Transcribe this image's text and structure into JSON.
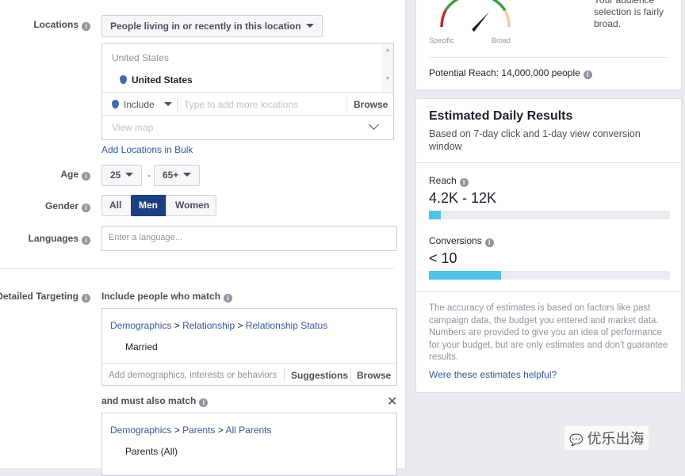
{
  "locations": {
    "label": "Locations",
    "type_dropdown": "People living in or recently in this location",
    "group_header": "United States",
    "selected": "United States",
    "include_label": "Include",
    "input_placeholder": "Type to add more locations",
    "browse": "Browse",
    "view_map": "View map",
    "bulk_link": "Add Locations in Bulk"
  },
  "age": {
    "label": "Age",
    "min": "25",
    "max": "65+",
    "separator": "-"
  },
  "gender": {
    "label": "Gender",
    "options": [
      "All",
      "Men",
      "Women"
    ],
    "selected": "Men"
  },
  "languages": {
    "label": "Languages",
    "placeholder": "Enter a language..."
  },
  "detailed": {
    "label": "Detailed Targeting",
    "include_heading": "Include people who match",
    "crumb1": [
      "Demographics",
      "Relationship",
      "Relationship Status"
    ],
    "value1": "Married",
    "placeholder": "Add demographics, interests or behaviors",
    "suggestions": "Suggestions",
    "browse": "Browse",
    "also_heading": "and must also match",
    "crumb2": [
      "Demographics",
      "Parents",
      "All Parents"
    ],
    "value2": "Parents (All)",
    "sep": ">"
  },
  "audience": {
    "specific": "Specific",
    "broad": "Broad",
    "description": "Your audience selection is fairly broad.",
    "potential_reach": "Potential Reach: 14,000,000 people"
  },
  "estimates": {
    "title": "Estimated Daily Results",
    "subtitle": "Based on 7-day click and 1-day view conversion window",
    "reach_label": "Reach",
    "reach_value": "4.2K - 12K",
    "reach_fill": 0.05,
    "conv_label": "Conversions",
    "conv_value": "< 10",
    "conv_fill": 0.3,
    "disclaimer": "The accuracy of estimates is based on factors like past campaign data, the budget you entered and market data. Numbers are provided to give you an idea of performance for your budget, but are only estimates and don't guarantee results.",
    "feedback_link": "Were these estimates helpful?"
  },
  "watermark": "优乐出海",
  "colors": {
    "accent": "#4267b2",
    "selected_button": "#1c3f80",
    "bar_fill": "#4fc3e8"
  }
}
